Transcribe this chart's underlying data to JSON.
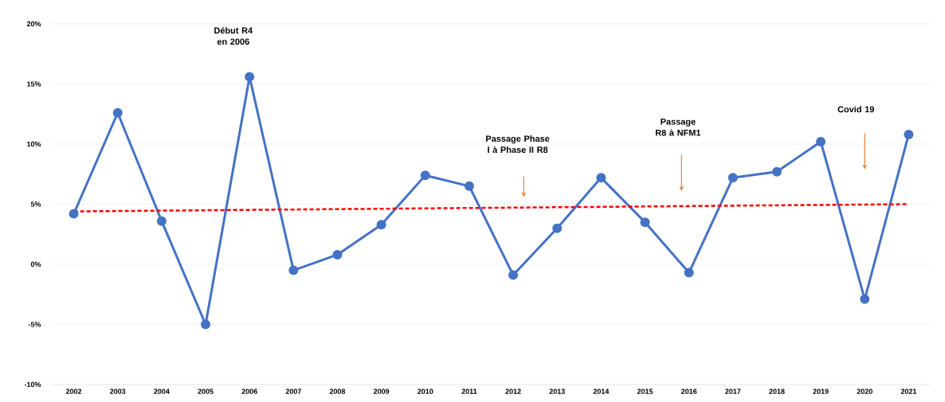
{
  "chart_data": {
    "type": "line",
    "categories": [
      "2002",
      "2003",
      "2004",
      "2005",
      "2006",
      "2007",
      "2008",
      "2009",
      "2010",
      "2011",
      "2012",
      "2013",
      "2014",
      "2015",
      "2016",
      "2017",
      "2018",
      "2019",
      "2020",
      "2021"
    ],
    "series": [
      {
        "color": "#4472c4",
        "marker": "circle",
        "line_style": "solid",
        "values": [
          4.2,
          12.6,
          3.6,
          -5.0,
          15.6,
          -0.5,
          0.8,
          3.3,
          7.4,
          6.5,
          -0.9,
          3.0,
          7.2,
          3.5,
          -0.7,
          7.2,
          7.7,
          10.2,
          -2.9,
          10.8
        ]
      },
      {
        "type": "line",
        "color": "#ff0000",
        "marker": "none",
        "line_style": "dashed",
        "values": [
          4.4,
          null,
          null,
          null,
          null,
          null,
          null,
          null,
          null,
          null,
          null,
          null,
          null,
          null,
          null,
          null,
          null,
          null,
          null,
          5.0
        ]
      }
    ],
    "ylim": [
      -10,
      20
    ],
    "yticks": [
      {
        "value": -10,
        "label": "-10%"
      },
      {
        "value": -5,
        "label": "-5%"
      },
      {
        "value": 0,
        "label": "0%"
      },
      {
        "value": 5,
        "label": "5%"
      },
      {
        "value": 10,
        "label": "10%"
      },
      {
        "value": 15,
        "label": "15%"
      },
      {
        "value": 20,
        "label": "20%"
      }
    ],
    "grid": "y",
    "annotations": [
      "Début R4 en 2006",
      "Passage Phase I à Phase II R8",
      "Passage R8 à NFM1",
      "Covid 19"
    ]
  }
}
